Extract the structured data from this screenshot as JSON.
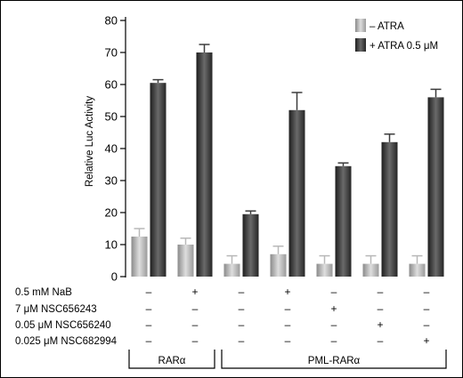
{
  "chart_data": {
    "type": "bar",
    "ylabel": "Relative Luc  Activity",
    "ylim": [
      0,
      80
    ],
    "yticks": [
      "0",
      "10",
      "20",
      "30",
      "40",
      "50",
      "60",
      "70",
      "80"
    ],
    "series": [
      {
        "name": "– ATRA",
        "color": "#b9b9b9",
        "values": [
          12.5,
          10,
          4,
          7,
          4,
          4,
          4
        ],
        "errors": [
          2.5,
          2,
          2.5,
          2.5,
          2.5,
          2.5,
          2.5
        ]
      },
      {
        "name": "+ ATRA 0.5 μM",
        "color": "#3c3c3c",
        "values": [
          60.5,
          70,
          19.5,
          52,
          34.5,
          42,
          56
        ],
        "errors": [
          1,
          2.5,
          1,
          5.5,
          1,
          2.5,
          2.5
        ]
      }
    ],
    "conditions": [
      {
        "label": "0.5 mM NaB",
        "signs": [
          "–",
          "+",
          "–",
          "+",
          "–",
          "–",
          "–"
        ]
      },
      {
        "label": "7 μM NSC656243",
        "signs": [
          "–",
          "–",
          "–",
          "–",
          "+",
          "–",
          "–"
        ]
      },
      {
        "label": "0.05 μM NSC656240",
        "signs": [
          "–",
          "–",
          "–",
          "–",
          "–",
          "+",
          "–"
        ]
      },
      {
        "label": "0.025 μM NSC682994",
        "signs": [
          "–",
          "–",
          "–",
          "–",
          "–",
          "–",
          "+"
        ]
      }
    ],
    "groups": [
      {
        "label": "RARα",
        "from": 0,
        "to": 1
      },
      {
        "label": "PML-RARα",
        "from": 2,
        "to": 6
      }
    ],
    "legend_position": "top-right",
    "grid": false
  }
}
